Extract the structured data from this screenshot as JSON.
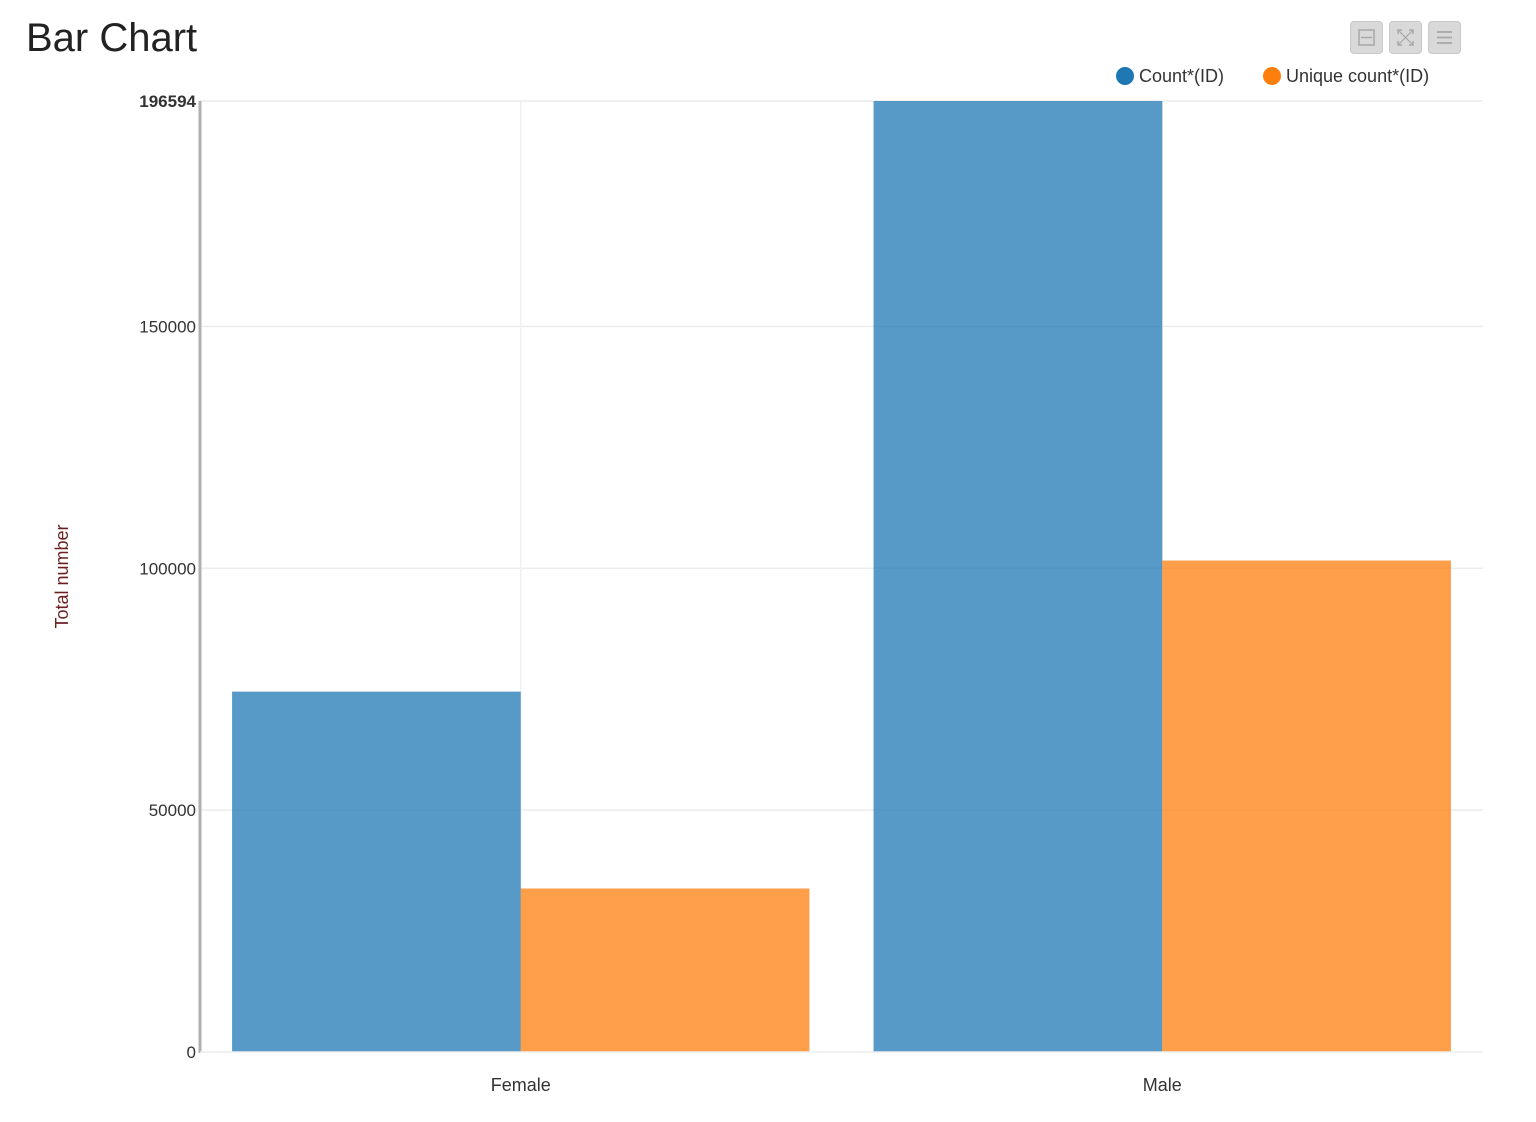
{
  "page": {
    "title": "Bar Chart"
  },
  "toolbar": {
    "buttons": [
      {
        "icon": "minimize-icon"
      },
      {
        "icon": "fullscreen-icon"
      },
      {
        "icon": "menu-icon"
      }
    ]
  },
  "chart_data": {
    "type": "bar",
    "title": "Bar Chart",
    "xlabel": "",
    "ylabel": "Total number",
    "categories": [
      "Female",
      "Male"
    ],
    "series": [
      {
        "name": "Count*(ID)",
        "color": "#1f77b4",
        "values": [
          74500,
          196594
        ]
      },
      {
        "name": "Unique count*(ID)",
        "color": "#ff7f0e",
        "values": [
          33800,
          101600
        ]
      }
    ],
    "ylim": [
      0,
      196594
    ],
    "yticks": [
      {
        "value": 0,
        "label": "0"
      },
      {
        "value": 50000,
        "label": "50000"
      },
      {
        "value": 100000,
        "label": "100000"
      },
      {
        "value": 150000,
        "label": "150000"
      },
      {
        "value": 196594,
        "label": "196594"
      }
    ],
    "grid": true,
    "legend": "top-right"
  }
}
